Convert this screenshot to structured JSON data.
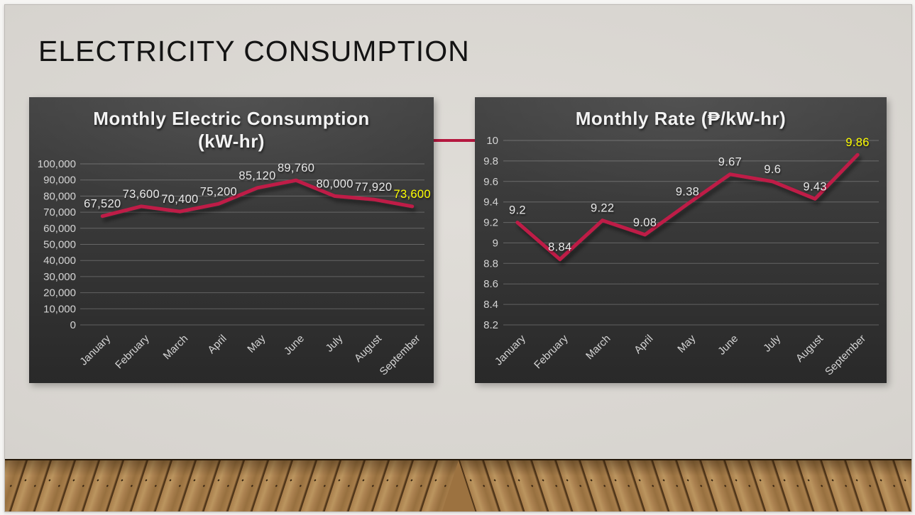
{
  "slide": {
    "title": "ELECTRICITY CONSUMPTION"
  },
  "colors": {
    "accent_line": "#bf1e47",
    "data_label": "#e8e8e8",
    "highlight_label": "#ffff00",
    "axis_text": "#d4d4d4",
    "chart_background": "#383838",
    "slide_background": "#d7d4cf"
  },
  "chart_data": [
    {
      "type": "line",
      "title": "Monthly Electric Consumption (kW-hr)",
      "title_lines": [
        "Monthly Electric Consumption",
        "(kW-hr)"
      ],
      "categories": [
        "January",
        "February",
        "March",
        "April",
        "May",
        "June",
        "July",
        "August",
        "September"
      ],
      "values": [
        67520,
        73600,
        70400,
        75200,
        85120,
        89760,
        80000,
        77920,
        73600
      ],
      "value_labels": [
        "67,520",
        "73,600",
        "70,400",
        "75,200",
        "85,120",
        "89,760",
        "80,000",
        "77,920",
        "73,600"
      ],
      "xlabel": "",
      "ylabel": "",
      "ylim": [
        0,
        100000
      ],
      "ytick_step": 10000,
      "ytick_labels": [
        "0",
        "10,000",
        "20,000",
        "30,000",
        "40,000",
        "50,000",
        "60,000",
        "70,000",
        "80,000",
        "90,000",
        "100,000"
      ],
      "grid": true,
      "legend": "none",
      "line_color": "#bf1e47",
      "label_color": "#e8e8e8",
      "last_label_color": "#ffff00"
    },
    {
      "type": "line",
      "title": "Monthly Rate (₱/kW-hr)",
      "title_lines": [
        "Monthly Rate (₱/kW-hr)"
      ],
      "categories": [
        "January",
        "February",
        "March",
        "April",
        "May",
        "June",
        "July",
        "August",
        "September"
      ],
      "values": [
        9.2,
        8.84,
        9.22,
        9.08,
        9.38,
        9.67,
        9.6,
        9.43,
        9.86
      ],
      "value_labels": [
        "9.2",
        "8.84",
        "9.22",
        "9.08",
        "9.38",
        "9.67",
        "9.6",
        "9.43",
        "9.86"
      ],
      "xlabel": "",
      "ylabel": "",
      "ylim": [
        8.2,
        10
      ],
      "ytick_step": 0.2,
      "ytick_labels": [
        "8.2",
        "8.4",
        "8.6",
        "8.8",
        "9",
        "9.2",
        "9.4",
        "9.6",
        "9.8",
        "10"
      ],
      "grid": true,
      "legend": "none",
      "line_color": "#bf1e47",
      "label_color": "#e8e8e8",
      "last_label_color": "#ffff00"
    }
  ]
}
